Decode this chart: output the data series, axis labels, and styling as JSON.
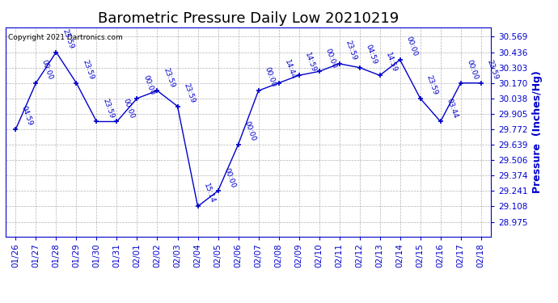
{
  "title": "Barometric Pressure Daily Low 20210219",
  "ylabel": "Pressure  (Inches/Hg)",
  "copyright": "Copyright 2021 Dartronics.com",
  "line_color": "#0000CC",
  "bg_color": "#FFFFFF",
  "grid_color": "#AAAAAA",
  "dates": [
    "01/26",
    "01/27",
    "01/28",
    "01/29",
    "01/30",
    "01/31",
    "02/01",
    "02/02",
    "02/03",
    "02/04",
    "02/05",
    "02/06",
    "02/07",
    "02/08",
    "02/09",
    "02/10",
    "02/11",
    "02/12",
    "02/13",
    "02/14",
    "02/15",
    "02/16",
    "02/17",
    "02/18"
  ],
  "values": [
    29.772,
    30.17,
    30.436,
    30.17,
    29.838,
    29.838,
    30.038,
    30.104,
    29.97,
    29.108,
    29.241,
    29.64,
    30.104,
    30.17,
    30.236,
    30.27,
    30.336,
    30.303,
    30.236,
    30.37,
    30.038,
    29.838,
    30.17,
    30.17
  ],
  "labels": [
    "04:59",
    "00:00",
    "23:59",
    "23:59",
    "23:59",
    "00:00",
    "00:00",
    "23:59",
    "23:59",
    "15:14",
    "00:00",
    "00:00",
    "00:00",
    "14:44",
    "14:59",
    "00:00",
    "23:59",
    "04:59",
    "14:59",
    "00:00",
    "23:59",
    "03:44",
    "00:00",
    "23:59"
  ],
  "yticks": [
    28.975,
    29.108,
    29.241,
    29.374,
    29.506,
    29.639,
    29.772,
    29.905,
    30.038,
    30.17,
    30.303,
    30.436,
    30.569
  ],
  "ylim": [
    28.85,
    30.65
  ],
  "title_fontsize": 13,
  "label_fontsize": 9,
  "tick_fontsize": 7.5,
  "annotation_fontsize": 6.5,
  "copyright_fontsize": 6.5
}
